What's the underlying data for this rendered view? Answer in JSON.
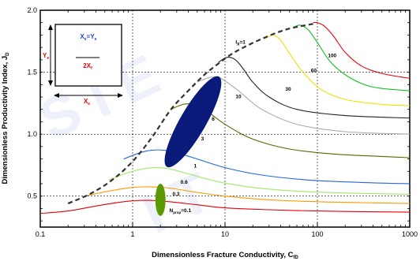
{
  "chart_data": {
    "type": "line",
    "title": "",
    "xlabel": "Dimensionless Fracture Conductivity, C",
    "xlabel_sub": "fD",
    "ylabel": "Dimensionless Productivity Index, J",
    "ylabel_sub": "D",
    "x_scale": "log",
    "xlim": [
      0.1,
      1000
    ],
    "ylim": [
      0.25,
      2.0
    ],
    "x_ticks": [
      {
        "value": 0.1,
        "label": "0.1"
      },
      {
        "value": 1,
        "label": "1"
      },
      {
        "value": 10,
        "label": "10"
      },
      {
        "value": 100,
        "label": "100"
      },
      {
        "value": 1000,
        "label": "1000"
      }
    ],
    "y_ticks": [
      {
        "value": 0.5,
        "label": "0.5"
      },
      {
        "value": 1.0,
        "label": "1.0"
      },
      {
        "value": 1.5,
        "label": "1.5"
      },
      {
        "value": 2.0,
        "label": "2.0"
      }
    ],
    "grid": true,
    "series": [
      {
        "label": "N",
        "label_sub": "prop",
        "label_suffix": "=0.1",
        "color": "#e8000a",
        "label_at": [
          2.5,
          0.37
        ],
        "x": [
          0.1,
          0.2,
          0.4,
          0.8,
          1.2,
          1.6,
          2.5,
          5,
          10,
          30,
          100,
          300,
          1000
        ],
        "y": [
          0.36,
          0.38,
          0.42,
          0.455,
          0.465,
          0.465,
          0.455,
          0.43,
          0.405,
          0.39,
          0.38,
          0.375,
          0.37
        ]
      },
      {
        "label": "0.3",
        "color": "#ff9900",
        "label_at": [
          2.7,
          0.505
        ],
        "x": [
          0.3,
          0.6,
          1.0,
          1.5,
          2.5,
          5,
          10,
          30,
          100,
          300,
          1000
        ],
        "y": [
          0.5,
          0.545,
          0.57,
          0.575,
          0.565,
          0.53,
          0.5,
          0.47,
          0.455,
          0.447,
          0.44
        ]
      },
      {
        "label": "0.6",
        "color": "#9eea6a",
        "label_at": [
          3.3,
          0.6
        ],
        "x": [
          0.55,
          0.9,
          1.3,
          1.8,
          2.5,
          4,
          8,
          20,
          60,
          200,
          1000
        ],
        "y": [
          0.63,
          0.69,
          0.72,
          0.73,
          0.72,
          0.68,
          0.62,
          0.57,
          0.54,
          0.525,
          0.515
        ]
      },
      {
        "label": "1",
        "color": "#2266dd",
        "label_at": [
          4.6,
          0.73
        ],
        "x": [
          0.8,
          1.2,
          1.6,
          2.2,
          3,
          5,
          10,
          25,
          80,
          300,
          1000
        ],
        "y": [
          0.8,
          0.85,
          0.87,
          0.87,
          0.85,
          0.8,
          0.73,
          0.67,
          0.63,
          0.61,
          0.6
        ]
      },
      {
        "label": "3",
        "color": "#556b00",
        "label_at": [
          5.5,
          0.95
        ],
        "x": [
          2.6,
          3.5,
          4.5,
          6,
          10,
          20,
          50,
          150,
          500,
          1000
        ],
        "y": [
          1.2,
          1.24,
          1.24,
          1.2,
          1.08,
          0.96,
          0.88,
          0.84,
          0.82,
          0.81
        ]
      },
      {
        "label": "6",
        "color": "#aaaaaa",
        "label_at": [
          7.2,
          1.11
        ],
        "x": [
          5.0,
          7,
          9,
          14,
          25,
          60,
          200,
          1000
        ],
        "y": [
          1.42,
          1.46,
          1.45,
          1.35,
          1.2,
          1.08,
          1.02,
          1.0
        ]
      },
      {
        "label": "10",
        "color": "#222222",
        "label_at": [
          13,
          1.29
        ],
        "x": [
          8.5,
          10.5,
          13,
          16,
          20,
          30,
          60,
          200,
          1000
        ],
        "y": [
          1.58,
          1.62,
          1.6,
          1.52,
          1.42,
          1.3,
          1.2,
          1.15,
          1.13
        ]
      },
      {
        "label": "30",
        "color": "#f0e000",
        "label_at": [
          45,
          1.35
        ],
        "x": [
          27,
          33,
          40,
          50,
          70,
          110,
          200,
          500,
          1000
        ],
        "y": [
          1.77,
          1.8,
          1.76,
          1.65,
          1.5,
          1.36,
          1.28,
          1.24,
          1.23
        ]
      },
      {
        "label": "60",
        "color": "#11bb22",
        "label_at": [
          85,
          1.5
        ],
        "x": [
          55,
          65,
          80,
          100,
          140,
          220,
          400,
          1000
        ],
        "y": [
          1.86,
          1.88,
          1.84,
          1.74,
          1.58,
          1.46,
          1.38,
          1.35
        ]
      },
      {
        "label": "100",
        "color": "#e8000a",
        "label_at": [
          130,
          1.62
        ],
        "x": [
          90,
          100,
          120,
          150,
          200,
          300,
          500,
          1000
        ],
        "y": [
          1.9,
          1.9,
          1.87,
          1.79,
          1.66,
          1.55,
          1.49,
          1.45
        ]
      },
      {
        "label": "I",
        "label_sub": "x",
        "label_suffix": "=1",
        "color": "#333333",
        "dashed": true,
        "label_at": [
          13,
          1.73
        ],
        "x": [
          0.2,
          0.35,
          0.6,
          1.0,
          1.6,
          2.6,
          4,
          6,
          8.5,
          12,
          18,
          27,
          40,
          55,
          90
        ],
        "y": [
          0.44,
          0.52,
          0.63,
          0.78,
          0.97,
          1.2,
          1.35,
          1.48,
          1.57,
          1.65,
          1.72,
          1.78,
          1.83,
          1.86,
          1.89
        ]
      }
    ],
    "annotations": {
      "blue_ellipse": {
        "color": "#0a1a7a",
        "cx_x": 4.5,
        "cy_y": 1.1,
        "rx_log_decades": 0.14,
        "ry_units": 0.42,
        "tilt_deg": -30
      },
      "green_ellipse": {
        "color": "#5a9a00",
        "cx_x": 2.0,
        "cy_y": 0.47,
        "rx_log_decades": 0.055,
        "ry_units": 0.13
      }
    }
  },
  "inset": {
    "eq_left": "X",
    "eq_left_sub": "e",
    "eq_mid": "=Y",
    "eq_right_sub": "e",
    "y_label": "Y",
    "y_label_sub": "e",
    "frac_label": "2X",
    "frac_label_sub": "f",
    "x_label": "X",
    "x_label_sub": "e",
    "colors": {
      "blue": "#1a3ec8",
      "red": "#e8000a"
    }
  }
}
